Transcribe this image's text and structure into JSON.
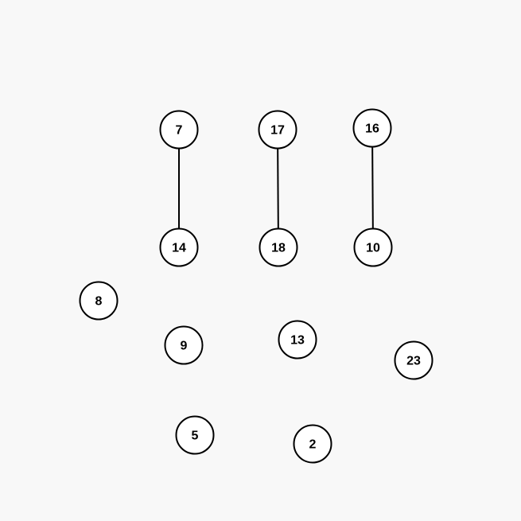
{
  "graph": {
    "type": "undirected-graph",
    "nodes": [
      {
        "id": "7",
        "label": "7"
      },
      {
        "id": "17",
        "label": "17"
      },
      {
        "id": "16",
        "label": "16"
      },
      {
        "id": "14",
        "label": "14"
      },
      {
        "id": "18",
        "label": "18"
      },
      {
        "id": "10",
        "label": "10"
      },
      {
        "id": "8",
        "label": "8"
      },
      {
        "id": "9",
        "label": "9"
      },
      {
        "id": "13",
        "label": "13"
      },
      {
        "id": "23",
        "label": "23"
      },
      {
        "id": "5",
        "label": "5"
      },
      {
        "id": "2",
        "label": "2"
      }
    ],
    "edges": [
      {
        "from": "7",
        "to": "14"
      },
      {
        "from": "17",
        "to": "18"
      },
      {
        "from": "16",
        "to": "10"
      }
    ]
  },
  "colors": {
    "background": "#f8f8f8",
    "node_fill": "#ffffff",
    "stroke": "#000000",
    "label": "#000000"
  }
}
